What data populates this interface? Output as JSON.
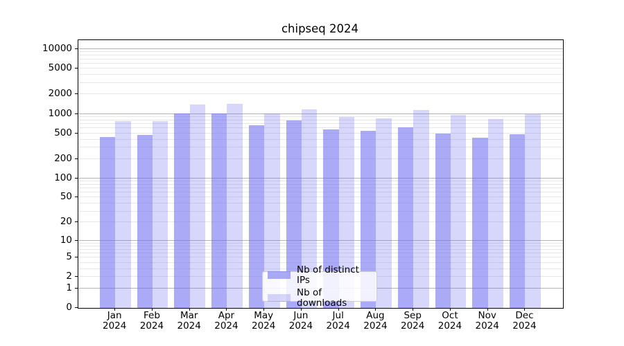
{
  "title": "chipseq 2024",
  "colors": {
    "bar_distinct_ips": "rgba(108,108,242,0.58)",
    "bar_downloads": "rgba(108,108,242,0.27)",
    "grid_major": "#b4b4b4",
    "grid_minor": "#e7e7e7",
    "axis": "#000000",
    "legend_border": "#cccccc"
  },
  "chart_data": {
    "type": "bar",
    "title": "chipseq 2024",
    "categories": [
      "Jan 2024",
      "Feb 2024",
      "Mar 2024",
      "Apr 2024",
      "May 2024",
      "Jun 2024",
      "Jul 2024",
      "Aug 2024",
      "Sep 2024",
      "Oct 2024",
      "Nov 2024",
      "Dec 2024"
    ],
    "x_tick_months": [
      "Jan",
      "Feb",
      "Mar",
      "Apr",
      "May",
      "Jun",
      "Jul",
      "Aug",
      "Sep",
      "Oct",
      "Nov",
      "Dec"
    ],
    "x_tick_year": "2024",
    "series": [
      {
        "name": "Nb of distinct IPs",
        "color": "rgba(108,108,242,0.58)",
        "values": [
          435,
          470,
          1010,
          1010,
          660,
          800,
          580,
          545,
          615,
          500,
          430,
          485
        ]
      },
      {
        "name": "Nb of downloads",
        "color": "rgba(108,108,242,0.27)",
        "values": [
          780,
          780,
          1390,
          1420,
          1020,
          1170,
          900,
          860,
          1150,
          970,
          840,
          1000
        ]
      }
    ],
    "yscale": "log1p",
    "y_tick_labels": [
      0,
      1,
      2,
      5,
      10,
      20,
      50,
      100,
      200,
      500,
      1000,
      2000,
      5000,
      10000
    ],
    "y_major_gridlines": [
      1,
      10,
      100,
      1000,
      10000
    ],
    "y_axis_top_value": 13800,
    "ylim": [
      0,
      13800
    ],
    "xlabel": "",
    "ylabel": "",
    "grid": true,
    "legend_position": "lower center"
  },
  "legend": {
    "items": [
      {
        "label": "Nb of distinct IPs"
      },
      {
        "label": "Nb of downloads"
      }
    ]
  }
}
